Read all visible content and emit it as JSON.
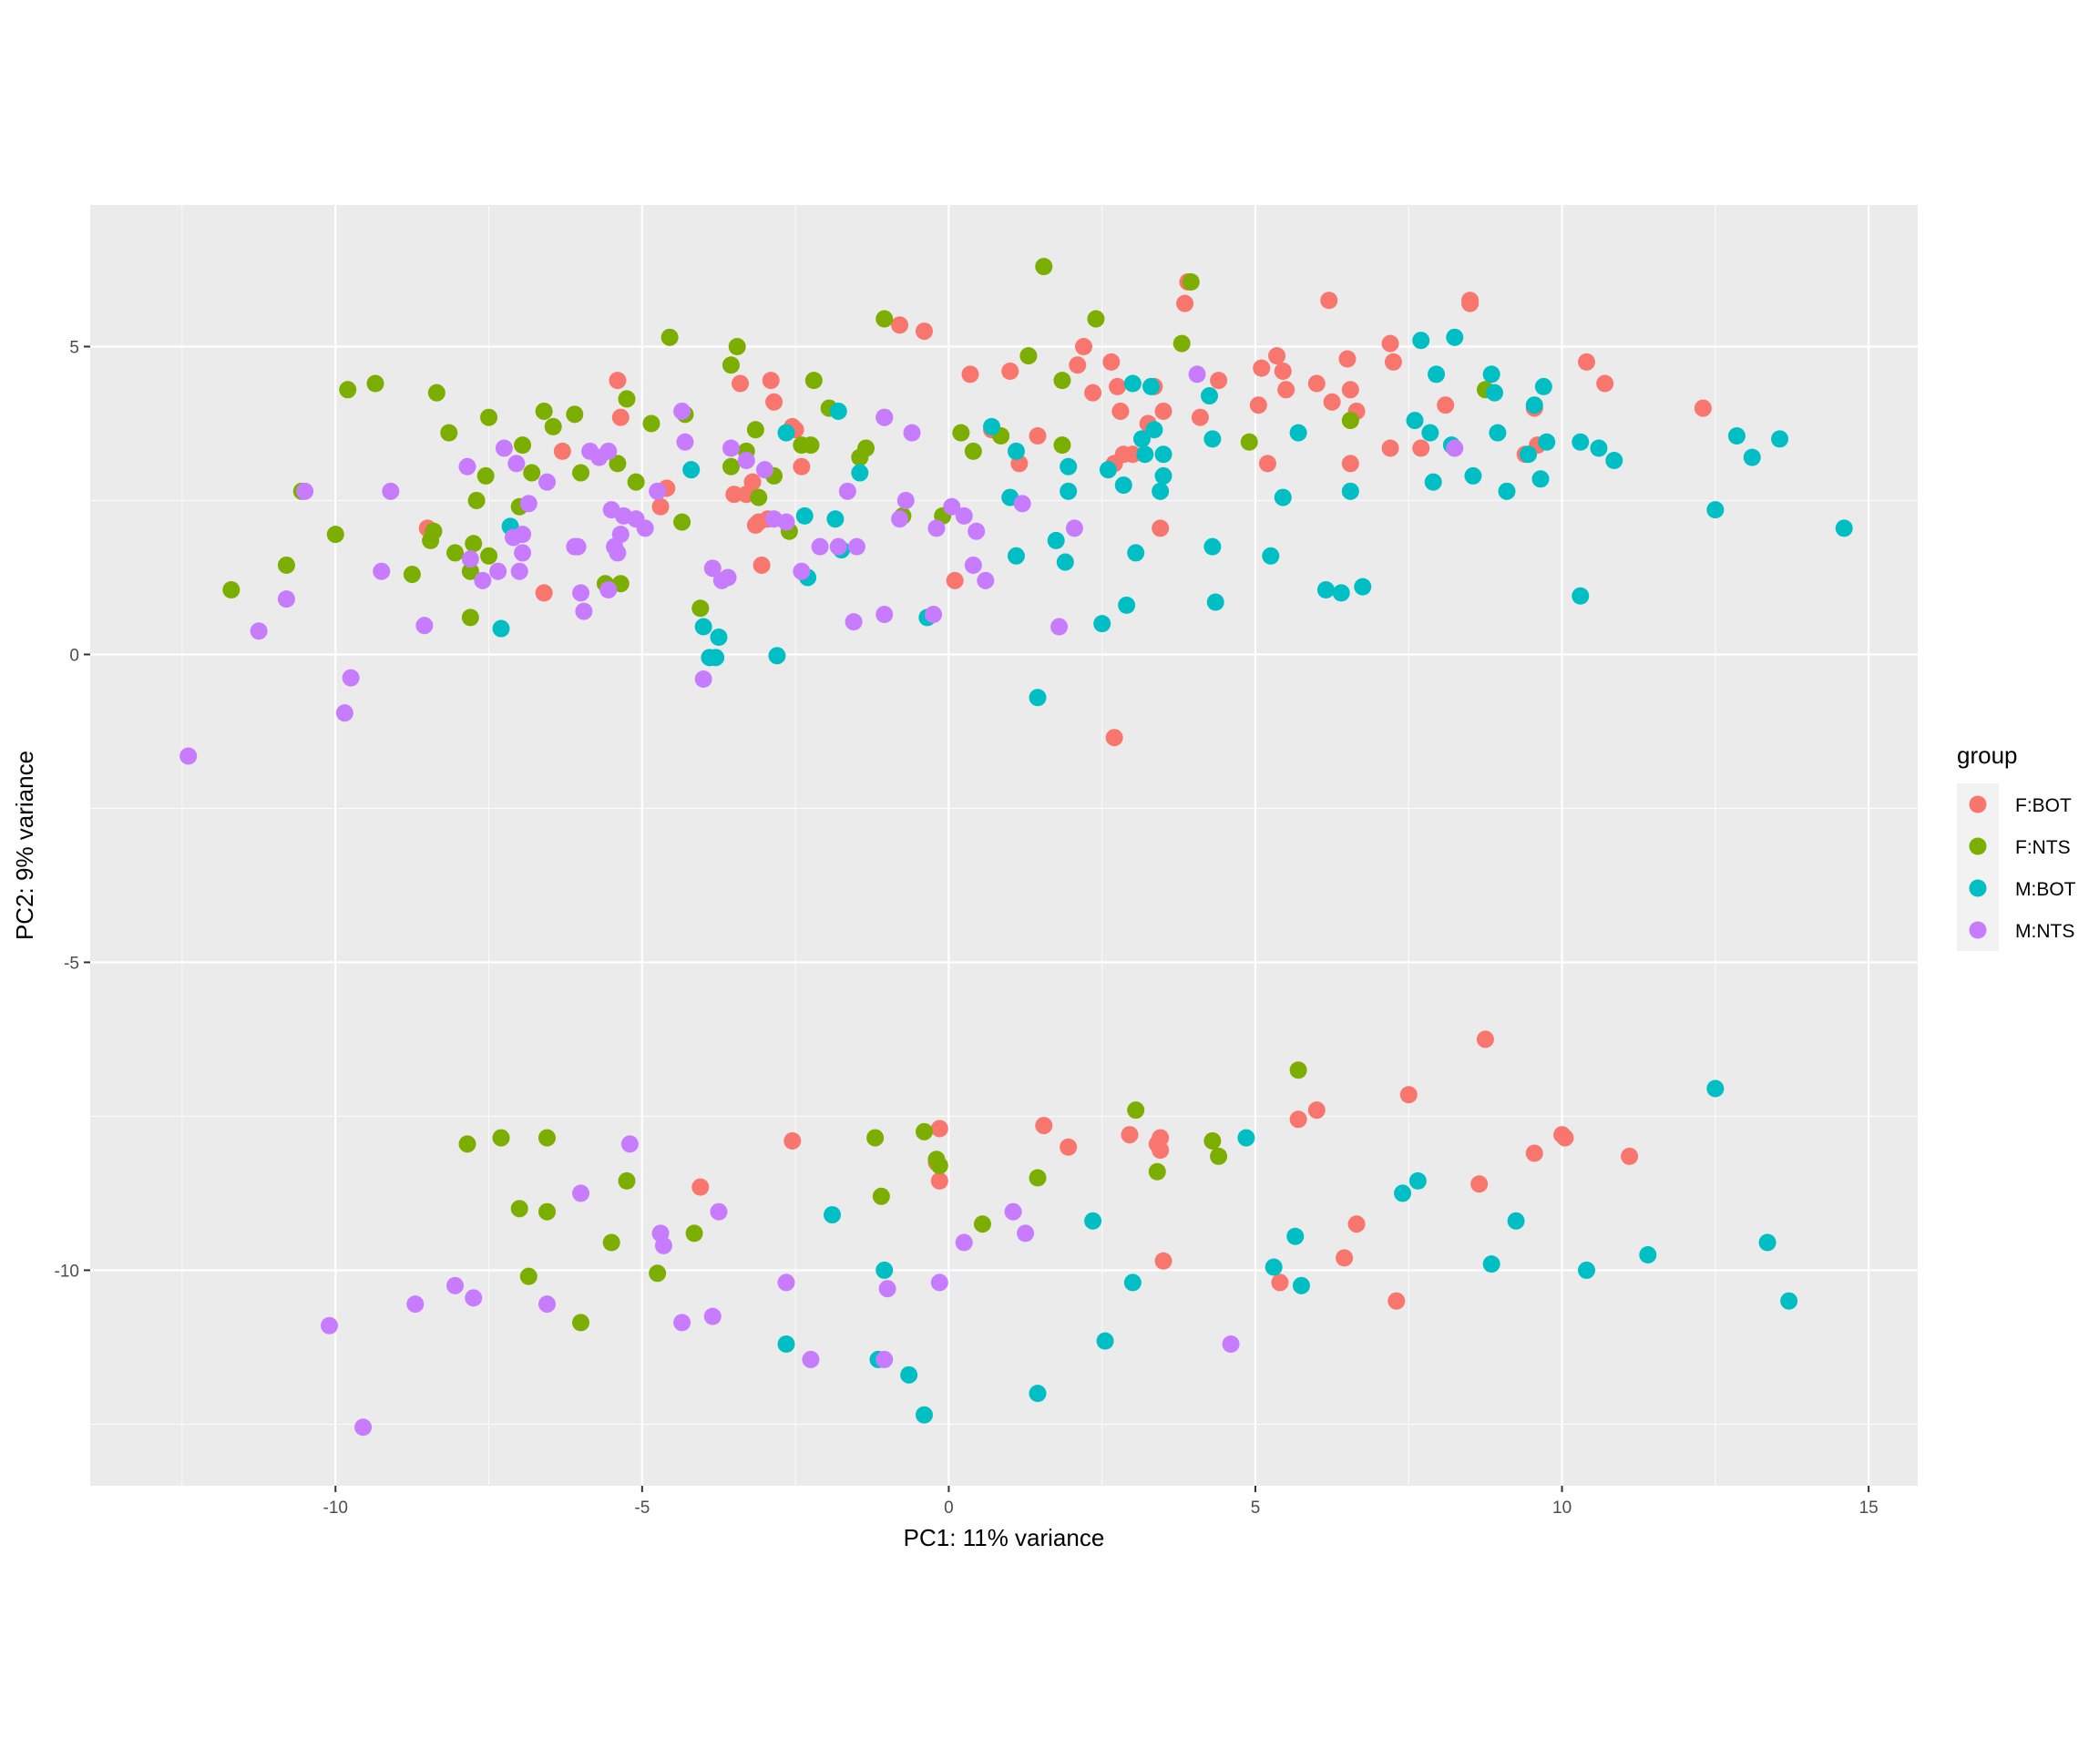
{
  "chart_data": {
    "type": "scatter",
    "xlabel": "PC1: 11% variance",
    "ylabel": "PC2: 9% variance",
    "xlim": [
      -14,
      15.8
    ],
    "ylim": [
      -13.5,
      7.3
    ],
    "x_ticks": [
      -10,
      -5,
      0,
      5,
      10,
      15
    ],
    "y_ticks": [
      -10,
      -5,
      0,
      5
    ],
    "grid": true,
    "legend": {
      "title": "group",
      "position": "right"
    },
    "series": [
      {
        "name": "F:BOT",
        "color": "#F8766D",
        "x": [
          -5.4,
          -5.35,
          -4.6,
          -4.7,
          -3.4,
          -3.5,
          -2.9,
          -2.85,
          -3.2,
          -3.1,
          -2.95,
          -3.15,
          -3.3,
          -2.55,
          -2.5,
          -2.4,
          -3.05,
          -6.3,
          -8.5,
          -6.6,
          -0.8,
          -0.4,
          0.35,
          0.7,
          1.0,
          1.15,
          1.45,
          0.1,
          2.1,
          2.2,
          2.35,
          2.65,
          2.75,
          2.8,
          3.0,
          2.85,
          2.7,
          3.25,
          3.35,
          3.45,
          3.5,
          3.85,
          3.9,
          4.1,
          4.4,
          5.05,
          5.1,
          5.2,
          5.35,
          5.45,
          5.5,
          6.0,
          6.2,
          6.25,
          6.5,
          6.55,
          6.65,
          6.55,
          7.2,
          7.25,
          7.2,
          7.7,
          8.1,
          8.5,
          8.5,
          9.4,
          9.55,
          9.6,
          10.4,
          10.7,
          12.3,
          2.7,
          8.75,
          7.5,
          6.0,
          5.7,
          -2.55,
          -0.15,
          -0.2,
          -0.15,
          -4.05,
          1.55,
          1.95,
          2.95,
          3.4,
          3.45,
          3.45,
          10.0,
          10.05,
          11.1,
          9.55,
          8.65,
          6.65,
          6.45,
          7.3,
          5.4,
          3.5
        ],
        "y": [
          4.45,
          3.85,
          2.7,
          2.4,
          4.4,
          2.6,
          4.45,
          4.1,
          2.8,
          2.15,
          2.2,
          2.1,
          2.6,
          3.7,
          3.65,
          3.05,
          1.45,
          3.3,
          2.05,
          1.0,
          5.35,
          5.25,
          4.55,
          3.65,
          4.6,
          3.1,
          3.55,
          1.2,
          4.7,
          5.0,
          4.25,
          4.75,
          4.35,
          3.95,
          3.25,
          3.25,
          3.1,
          3.75,
          4.35,
          2.05,
          3.95,
          5.7,
          6.05,
          3.85,
          4.45,
          4.05,
          4.65,
          3.1,
          4.85,
          4.6,
          4.3,
          4.4,
          5.75,
          4.1,
          4.8,
          4.3,
          3.95,
          3.1,
          5.05,
          4.75,
          3.35,
          3.35,
          4.05,
          5.7,
          5.75,
          3.25,
          4.0,
          3.4,
          4.75,
          4.4,
          4.0,
          -1.35,
          -6.25,
          -7.15,
          -7.4,
          -7.55,
          -7.9,
          -7.7,
          -8.25,
          -8.55,
          -8.65,
          -7.65,
          -8.0,
          -7.8,
          -7.95,
          -7.85,
          -8.05,
          -7.8,
          -7.85,
          -8.15,
          -8.1,
          -8.6,
          -9.25,
          -9.8,
          -10.5,
          -10.2,
          -9.85
        ]
      },
      {
        "name": "F:NTS",
        "color": "#7CAE00",
        "x": [
          -11.7,
          -10.8,
          -10.55,
          -10.0,
          -9.8,
          -9.35,
          -8.75,
          -8.45,
          -8.4,
          -8.35,
          -8.15,
          -8.05,
          -7.8,
          -7.8,
          -7.75,
          -7.7,
          -7.55,
          -7.5,
          -7.5,
          -7.0,
          -6.95,
          -6.8,
          -6.6,
          -6.45,
          -6.1,
          -6.0,
          -5.6,
          -5.4,
          -5.25,
          -5.1,
          -4.85,
          -4.55,
          -4.3,
          -4.35,
          -4.05,
          -3.55,
          -3.45,
          -3.55,
          -3.3,
          -3.15,
          -3.1,
          -2.85,
          -2.6,
          -2.4,
          -2.25,
          -2.2,
          -1.95,
          -1.45,
          -1.35,
          -1.05,
          -1.05,
          -0.75,
          -0.1,
          0.2,
          0.4,
          0.85,
          1.3,
          1.55,
          1.85,
          1.85,
          2.4,
          3.8,
          3.95,
          4.9,
          6.55,
          8.75,
          -5.35,
          -7.3,
          -6.55,
          -7.85,
          -7.0,
          -6.55,
          -6.85,
          -6.0,
          -5.5,
          -5.25,
          -4.75,
          -4.15,
          -1.2,
          -1.1,
          -0.4,
          -0.15,
          -0.2,
          0.55,
          1.45,
          3.05,
          3.4,
          4.3,
          4.4,
          5.7
        ],
        "y": [
          1.05,
          1.45,
          2.65,
          1.95,
          4.3,
          4.4,
          1.3,
          1.85,
          2.0,
          4.25,
          3.6,
          1.65,
          0.6,
          1.35,
          1.8,
          2.5,
          2.9,
          1.6,
          3.85,
          2.4,
          3.4,
          2.95,
          3.95,
          3.7,
          3.9,
          2.95,
          1.15,
          3.1,
          4.15,
          2.8,
          3.75,
          5.15,
          3.9,
          2.15,
          0.75,
          3.05,
          5.0,
          4.7,
          3.3,
          3.65,
          2.55,
          2.9,
          2.0,
          3.4,
          3.4,
          4.45,
          4.0,
          3.2,
          3.35,
          3.85,
          5.45,
          2.25,
          2.25,
          3.6,
          3.3,
          3.55,
          4.85,
          6.3,
          3.4,
          4.45,
          5.45,
          5.05,
          6.05,
          3.45,
          3.8,
          4.3,
          1.15,
          -7.85,
          -7.85,
          -7.95,
          -9.0,
          -9.05,
          -10.1,
          -10.85,
          -9.55,
          -8.55,
          -10.05,
          -9.4,
          -7.85,
          -8.8,
          -7.75,
          -8.3,
          -8.2,
          -9.25,
          -8.5,
          -7.4,
          -8.4,
          -7.9,
          -8.15,
          -6.75
        ]
      },
      {
        "name": "M:BOT",
        "color": "#00BFC4",
        "x": [
          -7.3,
          -7.15,
          -4.0,
          -3.9,
          -3.75,
          -3.8,
          -2.8,
          -2.65,
          -2.35,
          -2.3,
          -1.8,
          -1.85,
          -1.75,
          -1.45,
          -0.35,
          0.7,
          1.0,
          1.1,
          1.1,
          1.75,
          1.95,
          1.95,
          1.9,
          1.45,
          2.5,
          2.6,
          2.85,
          2.9,
          3.0,
          3.05,
          3.15,
          3.2,
          3.3,
          3.35,
          3.45,
          3.5,
          3.5,
          4.25,
          4.3,
          4.3,
          4.35,
          5.25,
          5.45,
          5.7,
          6.15,
          6.4,
          6.55,
          6.75,
          7.6,
          7.7,
          7.85,
          7.9,
          7.95,
          8.2,
          8.25,
          8.55,
          8.85,
          8.9,
          8.95,
          9.1,
          9.45,
          9.55,
          9.65,
          9.7,
          9.75,
          10.3,
          10.3,
          10.6,
          10.85,
          12.5,
          12.85,
          13.1,
          13.55,
          14.6,
          -0.4,
          -1.05,
          -0.65,
          -2.65,
          -1.9,
          -1.15,
          1.45,
          2.55,
          2.35,
          3.0,
          4.85,
          5.3,
          5.65,
          5.75,
          7.4,
          7.65,
          8.85,
          9.25,
          10.4,
          11.4,
          12.5,
          13.35,
          13.7,
          -4.2
        ],
        "y": [
          0.42,
          2.08,
          0.45,
          -0.05,
          0.28,
          -0.05,
          -0.02,
          3.6,
          2.25,
          1.25,
          3.95,
          2.2,
          1.7,
          2.95,
          0.6,
          3.7,
          2.55,
          3.3,
          1.6,
          1.85,
          3.05,
          2.65,
          1.5,
          -0.7,
          0.5,
          3.0,
          2.75,
          0.8,
          4.4,
          1.65,
          3.5,
          3.25,
          4.35,
          3.65,
          2.65,
          2.9,
          3.25,
          4.2,
          3.5,
          1.75,
          0.85,
          1.6,
          2.55,
          3.6,
          1.05,
          1.0,
          2.65,
          1.1,
          3.8,
          5.1,
          3.6,
          2.8,
          4.55,
          3.4,
          5.15,
          2.9,
          4.55,
          4.25,
          3.6,
          2.65,
          3.25,
          4.05,
          2.85,
          4.35,
          3.45,
          3.45,
          0.95,
          3.35,
          3.15,
          2.35,
          3.55,
          3.2,
          3.5,
          2.05,
          -12.35,
          -10.0,
          -11.7,
          -11.2,
          -9.1,
          -11.45,
          -12.0,
          -11.15,
          -9.2,
          -10.2,
          -7.85,
          -9.95,
          -9.45,
          -10.25,
          -8.75,
          -8.55,
          -9.9,
          -9.2,
          -10.0,
          -9.75,
          -7.05,
          -9.55,
          -10.5,
          3.0
        ],
        "name_note": ""
      },
      {
        "name": "M:NTS",
        "color": "#C77CFF",
        "x": [
          -12.4,
          -11.25,
          -10.8,
          -10.5,
          -9.85,
          -9.75,
          -9.25,
          -9.1,
          -8.55,
          -7.85,
          -7.8,
          -7.6,
          -7.35,
          -7.25,
          -7.1,
          -7.05,
          -7.0,
          -6.95,
          -6.95,
          -6.85,
          -6.55,
          -6.1,
          -6.05,
          -6.0,
          -5.95,
          -5.85,
          -5.7,
          -5.55,
          -5.55,
          -5.5,
          -5.45,
          -5.4,
          -5.35,
          -5.3,
          -5.1,
          -4.95,
          -4.75,
          -4.35,
          -4.3,
          -3.85,
          -3.7,
          -3.6,
          -3.55,
          -3.3,
          -3.0,
          -2.85,
          -2.65,
          -2.4,
          -2.1,
          -1.8,
          -1.65,
          -1.55,
          -1.5,
          -1.05,
          -1.05,
          -0.8,
          -0.7,
          -0.6,
          -0.25,
          -0.2,
          0.05,
          0.25,
          0.4,
          0.45,
          0.6,
          1.2,
          1.8,
          2.05,
          4.05,
          8.25,
          -4.0,
          -5.2,
          -6.0,
          -4.7,
          -4.65,
          -3.75,
          -8.7,
          -8.05,
          -7.75,
          -6.55,
          -4.35,
          -3.85,
          -2.65,
          -2.25,
          -1.05,
          -1.0,
          -0.15,
          -10.1,
          -9.55,
          0.25,
          1.05,
          1.25,
          4.6
        ],
        "y": [
          -1.65,
          0.38,
          0.9,
          2.65,
          -0.95,
          -0.38,
          1.35,
          2.65,
          0.47,
          3.05,
          1.55,
          1.2,
          1.35,
          3.35,
          1.9,
          3.1,
          1.35,
          1.65,
          1.95,
          2.45,
          2.8,
          1.75,
          1.75,
          1.0,
          0.7,
          3.3,
          3.2,
          1.05,
          3.3,
          2.35,
          1.75,
          1.65,
          1.95,
          2.25,
          2.2,
          2.05,
          2.65,
          3.95,
          3.45,
          1.4,
          1.2,
          1.25,
          3.35,
          3.15,
          3.0,
          2.2,
          2.15,
          1.35,
          1.75,
          1.75,
          2.65,
          0.53,
          1.75,
          3.85,
          0.65,
          2.2,
          2.5,
          3.6,
          0.65,
          2.05,
          2.4,
          2.25,
          1.45,
          2.0,
          1.2,
          2.45,
          0.45,
          2.05,
          4.55,
          3.35,
          -0.4,
          -7.95,
          -8.75,
          -9.4,
          -9.6,
          -9.05,
          -10.55,
          -10.25,
          -10.45,
          -10.55,
          -10.85,
          -10.75,
          -10.2,
          -11.45,
          -11.45,
          -10.3,
          -10.2,
          -10.9,
          -12.55,
          -9.55,
          -9.05,
          -9.4,
          -11.2
        ]
      }
    ]
  }
}
